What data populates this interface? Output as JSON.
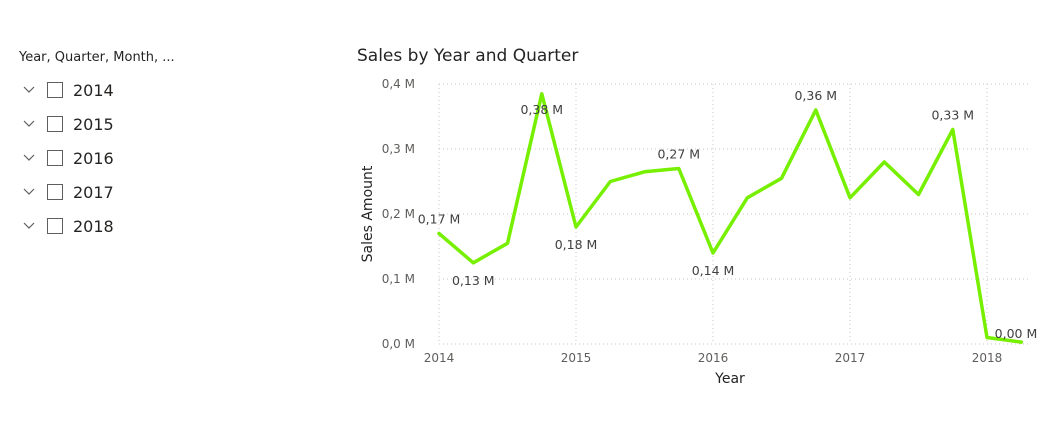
{
  "slicer": {
    "header": "Year, Quarter, Month, ...",
    "items": [
      {
        "label": "2014"
      },
      {
        "label": "2015"
      },
      {
        "label": "2016"
      },
      {
        "label": "2017"
      },
      {
        "label": "2018"
      }
    ],
    "chevron_icon": "chevron-down-icon"
  },
  "chart_data": {
    "type": "line",
    "title": "Sales by Year and Quarter",
    "xlabel": "Year",
    "ylabel": "Sales Amount",
    "ylim": [
      0,
      0.4
    ],
    "y_ticks": [
      {
        "value": 0.0,
        "label": "0,0 M"
      },
      {
        "value": 0.1,
        "label": "0,1 M"
      },
      {
        "value": 0.2,
        "label": "0,2 M"
      },
      {
        "value": 0.3,
        "label": "0,3 M"
      },
      {
        "value": 0.4,
        "label": "0,4 M"
      }
    ],
    "x_ticks": [
      "2014",
      "2015",
      "2016",
      "2017",
      "2018"
    ],
    "grid": true,
    "line_color": "#76F000",
    "series": [
      {
        "points": [
          {
            "year": 2014,
            "quarter": 1,
            "value": 0.17,
            "label": "0,17 M"
          },
          {
            "year": 2014,
            "quarter": 2,
            "value": 0.125,
            "label": "0,13 M"
          },
          {
            "year": 2014,
            "quarter": 3,
            "value": 0.155,
            "label": ""
          },
          {
            "year": 2014,
            "quarter": 4,
            "value": 0.385,
            "label": "0,38 M"
          },
          {
            "year": 2015,
            "quarter": 1,
            "value": 0.18,
            "label": "0,18 M"
          },
          {
            "year": 2015,
            "quarter": 2,
            "value": 0.25,
            "label": ""
          },
          {
            "year": 2015,
            "quarter": 3,
            "value": 0.265,
            "label": ""
          },
          {
            "year": 2015,
            "quarter": 4,
            "value": 0.27,
            "label": "0,27 M"
          },
          {
            "year": 2016,
            "quarter": 1,
            "value": 0.14,
            "label": "0,14 M"
          },
          {
            "year": 2016,
            "quarter": 2,
            "value": 0.225,
            "label": ""
          },
          {
            "year": 2016,
            "quarter": 3,
            "value": 0.255,
            "label": ""
          },
          {
            "year": 2016,
            "quarter": 4,
            "value": 0.36,
            "label": "0,36 M"
          },
          {
            "year": 2017,
            "quarter": 1,
            "value": 0.225,
            "label": ""
          },
          {
            "year": 2017,
            "quarter": 2,
            "value": 0.28,
            "label": ""
          },
          {
            "year": 2017,
            "quarter": 3,
            "value": 0.23,
            "label": ""
          },
          {
            "year": 2017,
            "quarter": 4,
            "value": 0.33,
            "label": "0,33 M"
          },
          {
            "year": 2018,
            "quarter": 1,
            "value": 0.01,
            "label": ""
          },
          {
            "year": 2018,
            "quarter": 2,
            "value": 0.003,
            "label": "0,00 M"
          }
        ]
      }
    ]
  }
}
